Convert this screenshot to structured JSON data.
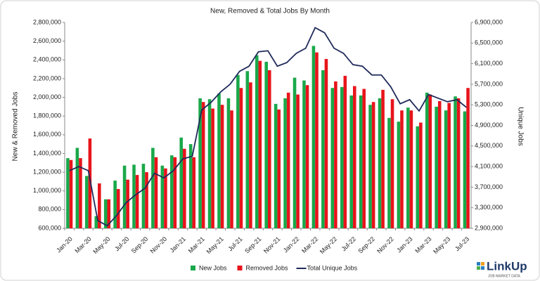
{
  "chart_data": {
    "type": "bar",
    "title": "New, Removed & Total Jobs By Month",
    "y_label": "New & Removed Jobs",
    "y2_label": "Unique Jobs",
    "categories": [
      "Jan-20",
      null,
      "Mar-20",
      null,
      "May-20",
      null,
      "Jul-20",
      null,
      "Sep-20",
      null,
      "Nov-20",
      null,
      "Jan-21",
      null,
      "Mar-21",
      null,
      "May-21",
      null,
      "Jul-21",
      null,
      "Sep-21",
      null,
      "Nov-21",
      null,
      "Jan-22",
      null,
      "Mar-22",
      null,
      "May-22",
      null,
      "Jul-22",
      null,
      "Sep-22",
      null,
      "Nov-22",
      null,
      "Jan-23",
      null,
      "Mar-23",
      null,
      "May-23",
      null,
      "Jul-23"
    ],
    "series": [
      {
        "name": "New Jobs",
        "color": "#1aa84a",
        "type": "bar",
        "values": [
          1350000,
          1460000,
          1160000,
          730000,
          910000,
          1110000,
          1270000,
          1280000,
          1290000,
          1460000,
          1270000,
          1380000,
          1570000,
          1500000,
          1990000,
          1980000,
          2040000,
          1990000,
          2240000,
          2280000,
          2450000,
          2380000,
          1930000,
          1990000,
          2210000,
          2180000,
          2550000,
          2290000,
          2100000,
          2110000,
          2020000,
          2020000,
          1920000,
          1990000,
          1780000,
          1740000,
          1890000,
          1690000,
          2050000,
          1900000,
          1860000,
          2010000,
          1850000
        ]
      },
      {
        "name": "Removed Jobs",
        "color": "#e8141b",
        "type": "bar",
        "values": [
          1330000,
          1350000,
          1560000,
          1080000,
          910000,
          1020000,
          1120000,
          1170000,
          1200000,
          1360000,
          1240000,
          1360000,
          1450000,
          1360000,
          1950000,
          1880000,
          1920000,
          1860000,
          2100000,
          2160000,
          2390000,
          2290000,
          1870000,
          2050000,
          2030000,
          2130000,
          2480000,
          2410000,
          2170000,
          2230000,
          2120000,
          2090000,
          1950000,
          2080000,
          1980000,
          1860000,
          1860000,
          1730000,
          2030000,
          1960000,
          1940000,
          1990000,
          2100000
        ]
      },
      {
        "name": "Total Unique Jobs",
        "color": "#1f2a5a",
        "type": "line",
        "axis": "y2",
        "values": [
          4020000,
          4100000,
          4020000,
          3050000,
          2950000,
          3150000,
          3400000,
          3550000,
          3680000,
          3970000,
          3880000,
          4020000,
          4250000,
          4300000,
          5200000,
          5350000,
          5550000,
          5700000,
          5950000,
          6050000,
          6330000,
          6350000,
          6050000,
          6120000,
          6300000,
          6400000,
          6800000,
          6700000,
          6400000,
          6300000,
          6080000,
          6050000,
          5880000,
          5880000,
          5650000,
          5320000,
          5400000,
          5180000,
          5500000,
          5430000,
          5360000,
          5400000,
          5250000
        ]
      }
    ],
    "ylim": [
      600000,
      2800000
    ],
    "yticks": [
      {
        "value": 600000,
        "label": "600,000"
      },
      {
        "value": 800000,
        "label": "800,000"
      },
      {
        "value": 1000000,
        "label": "1,000,000"
      },
      {
        "value": 1200000,
        "label": "1,200,000"
      },
      {
        "value": 1400000,
        "label": "1,400,000"
      },
      {
        "value": 1600000,
        "label": "1,600,000"
      },
      {
        "value": 1800000,
        "label": "1,800,000"
      },
      {
        "value": 2000000,
        "label": "2,000,000"
      },
      {
        "value": 2200000,
        "label": "2,200,000"
      },
      {
        "value": 2400000,
        "label": "2,400,000"
      },
      {
        "value": 2600000,
        "label": "2,600,000"
      },
      {
        "value": 2800000,
        "label": "2,800,000"
      }
    ],
    "y2lim": [
      2900000,
      6900000
    ],
    "y2ticks": [
      {
        "value": 2900000,
        "label": "2,900,000"
      },
      {
        "value": 3300000,
        "label": "3,300,000"
      },
      {
        "value": 3700000,
        "label": "3,700,000"
      },
      {
        "value": 4100000,
        "label": "4,100,000"
      },
      {
        "value": 4500000,
        "label": "4,500,000"
      },
      {
        "value": 4900000,
        "label": "4,900,000"
      },
      {
        "value": 5300000,
        "label": "5,300,000"
      },
      {
        "value": 5700000,
        "label": "5,700,000"
      },
      {
        "value": 6100000,
        "label": "6,100,000"
      },
      {
        "value": 6500000,
        "label": "6,500,000"
      },
      {
        "value": 6900000,
        "label": "6,900,000"
      }
    ],
    "grid": false,
    "legend": "bottom"
  },
  "logo": {
    "name": "LinkUp",
    "tagline": "JOB MARKET DATA"
  }
}
